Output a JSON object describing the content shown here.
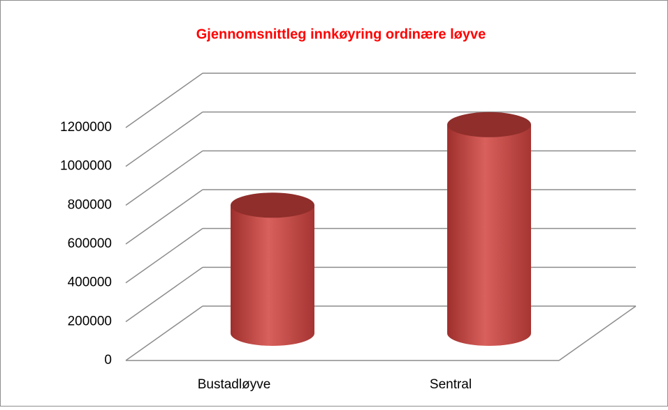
{
  "chart_data": {
    "type": "bar3d",
    "title": "Gjennomsnittleg innkøyring ordinære løyve",
    "categories": [
      "Bustadløyve",
      "Sentral"
    ],
    "values": [
      660000,
      1075000
    ],
    "color": "#c0504d",
    "ylim": [
      0,
      1200000
    ],
    "yticks": [
      0,
      200000,
      400000,
      600000,
      800000,
      1000000,
      1200000
    ],
    "grid": true
  }
}
